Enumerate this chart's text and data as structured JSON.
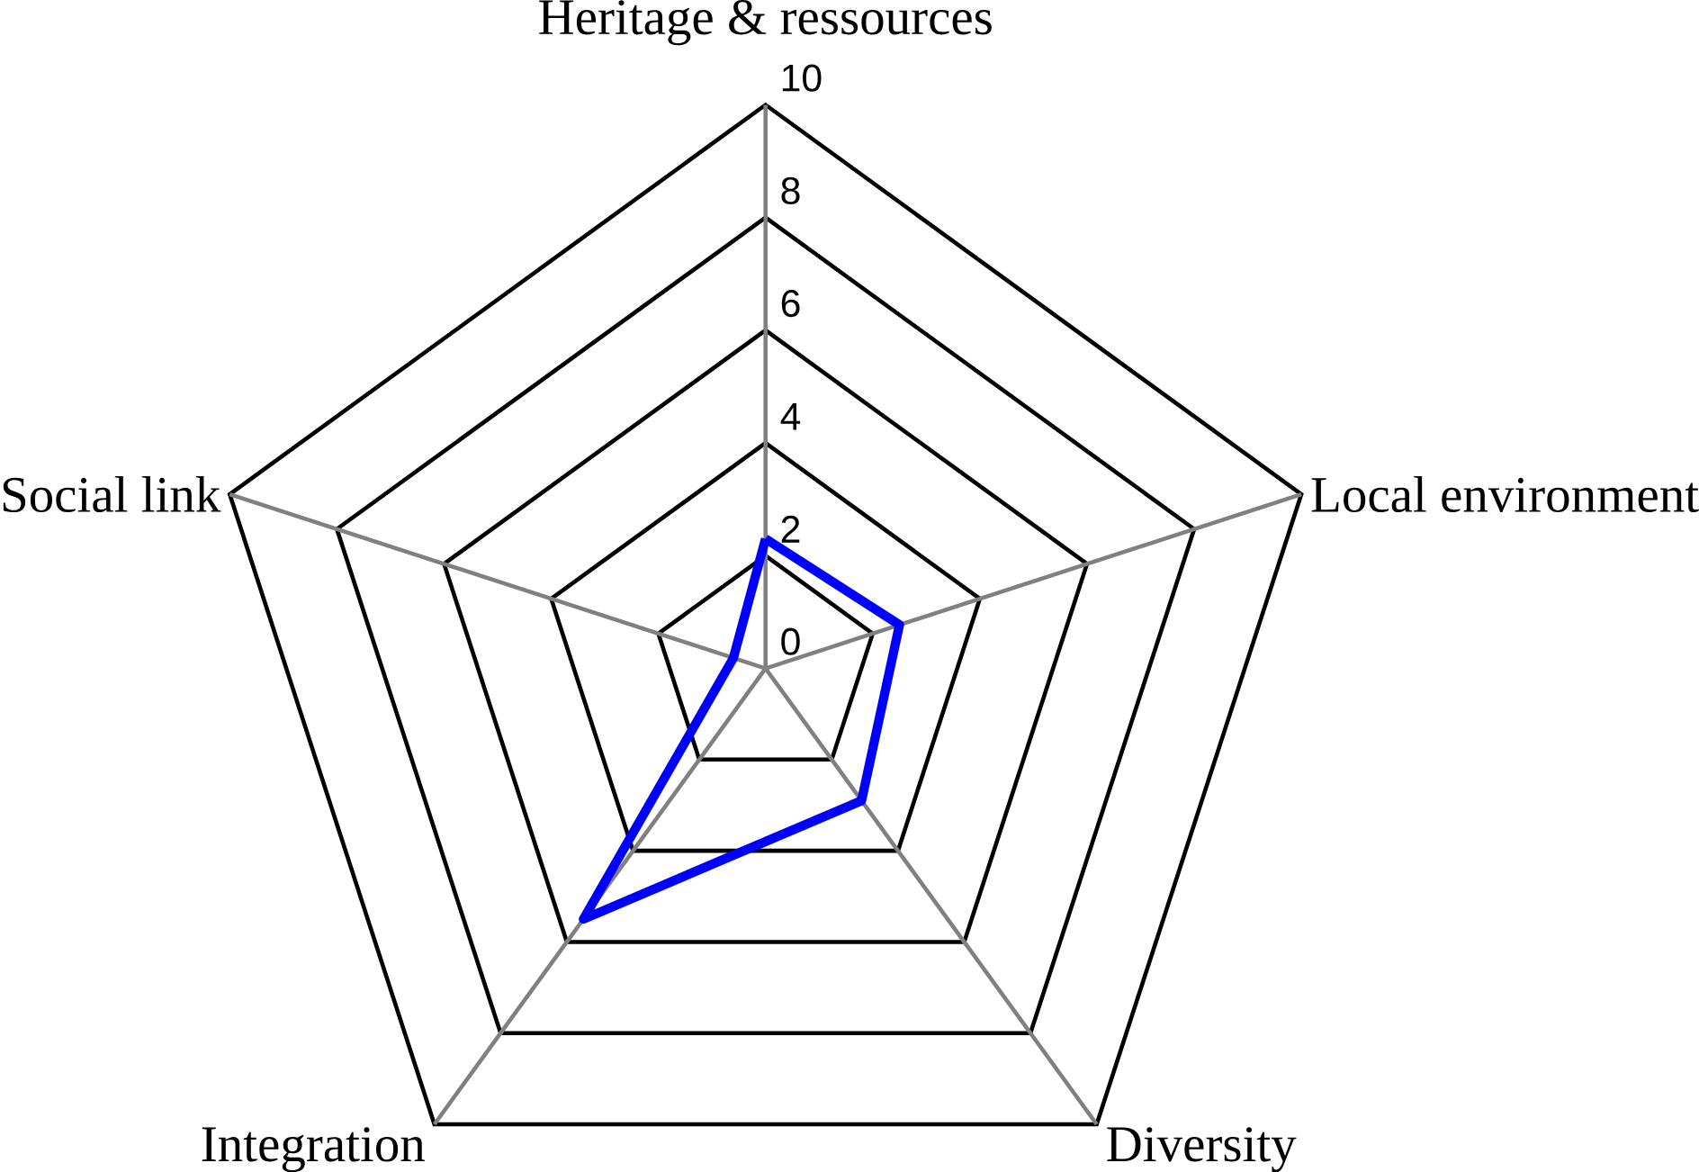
{
  "chart_data": {
    "type": "radar",
    "categories": [
      "Heritage & ressources",
      "Local environment",
      "Diversity",
      "Integration",
      "Social link"
    ],
    "series": [
      {
        "color": "#0000ff",
        "values": [
          2.3,
          2.5,
          2.9,
          5.5,
          0.6
        ]
      }
    ],
    "ylim": [
      0,
      10
    ],
    "yticks": [
      0,
      2,
      4,
      6,
      8,
      10
    ]
  }
}
